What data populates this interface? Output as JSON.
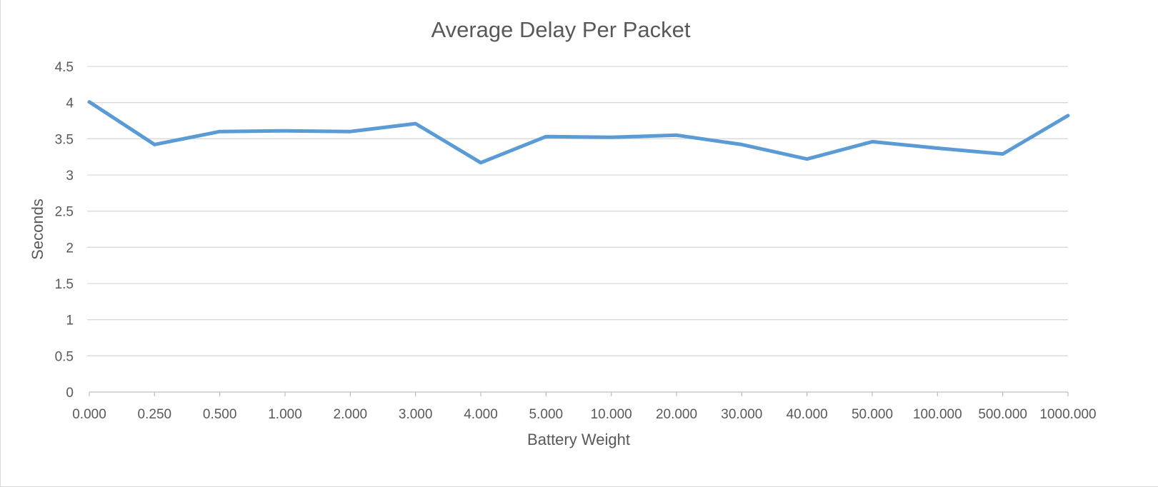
{
  "chart_data": {
    "type": "line",
    "title": "Average Delay Per Packet",
    "xlabel": "Battery Weight",
    "ylabel": "Seconds",
    "categories": [
      "0.000",
      "0.250",
      "0.500",
      "1.000",
      "2.000",
      "3.000",
      "4.000",
      "5.000",
      "10.000",
      "20.000",
      "30.000",
      "40.000",
      "50.000",
      "100.000",
      "500.000",
      "1000.000"
    ],
    "series": [
      {
        "values": [
          4.01,
          3.42,
          3.6,
          3.61,
          3.6,
          3.71,
          3.17,
          3.53,
          3.52,
          3.55,
          3.42,
          3.22,
          3.46,
          3.37,
          3.29,
          3.82
        ]
      }
    ],
    "ylim": [
      0,
      4.5
    ],
    "yticks": [
      "0",
      "0.5",
      "1",
      "1.5",
      "2",
      "2.5",
      "3",
      "3.5",
      "4",
      "4.5"
    ],
    "grid": true,
    "legend": "none",
    "colors": {
      "series": "#5b9bd5",
      "gridline": "#d9d9d9",
      "text": "#595959"
    }
  }
}
